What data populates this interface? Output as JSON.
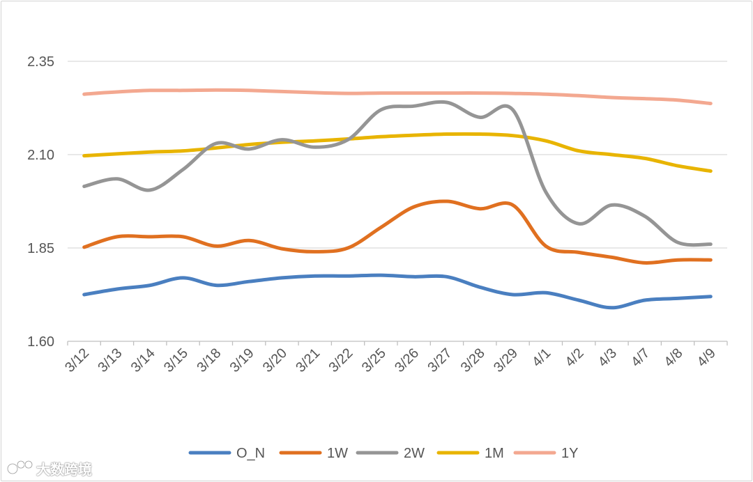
{
  "chart_data": {
    "type": "line",
    "categories": [
      "3/12",
      "3/13",
      "3/14",
      "3/15",
      "3/18",
      "3/19",
      "3/20",
      "3/21",
      "3/22",
      "3/25",
      "3/26",
      "3/27",
      "3/28",
      "3/29",
      "4/1",
      "4/2",
      "4/3",
      "4/7",
      "4/8",
      "4/9"
    ],
    "ylim": [
      1.6,
      2.35
    ],
    "yticks": [
      "1.60",
      "1.85",
      "2.10",
      "2.35"
    ],
    "ytick_values": [
      1.6,
      1.85,
      2.1,
      2.35
    ],
    "grid": true,
    "legend_position": "bottom",
    "series": [
      {
        "name": "O_N",
        "color": "#4a7fc0",
        "values": [
          1.725,
          1.74,
          1.75,
          1.77,
          1.75,
          1.76,
          1.77,
          1.775,
          1.775,
          1.777,
          1.773,
          1.773,
          1.745,
          1.725,
          1.73,
          1.71,
          1.69,
          1.71,
          1.715,
          1.72
        ]
      },
      {
        "name": "1W",
        "color": "#e07020",
        "values": [
          1.852,
          1.88,
          1.88,
          1.88,
          1.855,
          1.87,
          1.848,
          1.84,
          1.85,
          1.905,
          1.96,
          1.975,
          1.955,
          1.965,
          1.855,
          1.838,
          1.825,
          1.81,
          1.818,
          1.818
        ]
      },
      {
        "name": "2W",
        "color": "#959595",
        "values": [
          2.015,
          2.035,
          2.005,
          2.06,
          2.13,
          2.115,
          2.14,
          2.12,
          2.14,
          2.22,
          2.23,
          2.24,
          2.2,
          2.22,
          2.0,
          1.915,
          1.965,
          1.935,
          1.865,
          1.86
        ]
      },
      {
        "name": "1M",
        "color": "#e8b400",
        "values": [
          2.097,
          2.102,
          2.107,
          2.11,
          2.118,
          2.127,
          2.133,
          2.137,
          2.142,
          2.148,
          2.152,
          2.155,
          2.155,
          2.151,
          2.137,
          2.11,
          2.1,
          2.09,
          2.07,
          2.056
        ]
      },
      {
        "name": "1Y",
        "color": "#f3a890",
        "values": [
          2.262,
          2.268,
          2.272,
          2.272,
          2.273,
          2.272,
          2.269,
          2.266,
          2.264,
          2.265,
          2.265,
          2.265,
          2.265,
          2.264,
          2.262,
          2.258,
          2.253,
          2.25,
          2.246,
          2.237
        ]
      }
    ]
  },
  "watermark": {
    "icon": "bee-logo-icon",
    "text": "大数跨境"
  }
}
